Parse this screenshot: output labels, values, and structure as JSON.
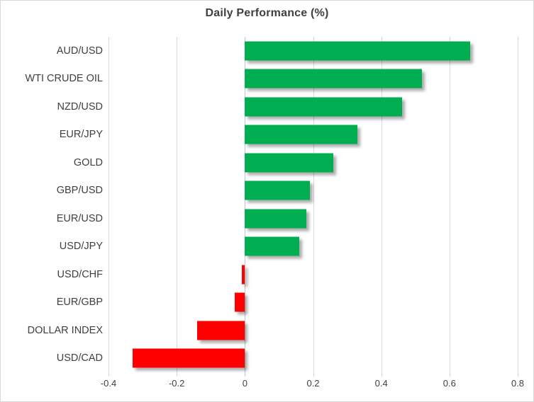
{
  "chart_data": {
    "type": "bar",
    "orientation": "horizontal",
    "title": "Daily Performance (%)",
    "categories": [
      "AUD/USD",
      "WTI CRUDE OIL",
      "NZD/USD",
      "EUR/JPY",
      "GOLD",
      "GBP/USD",
      "EUR/USD",
      "USD/JPY",
      "USD/CHF",
      "EUR/GBP",
      "DOLLAR INDEX",
      "USD/CAD"
    ],
    "values": [
      0.66,
      0.52,
      0.46,
      0.33,
      0.26,
      0.19,
      0.18,
      0.16,
      -0.01,
      -0.03,
      -0.14,
      -0.33
    ],
    "xlim": [
      -0.4,
      0.8
    ],
    "xticks": [
      -0.4,
      -0.2,
      0,
      0.2,
      0.4,
      0.6,
      0.8
    ],
    "xtick_labels": [
      "-0.4",
      "-0.2",
      "0",
      "0.2",
      "0.4",
      "0.6",
      "0.8"
    ],
    "xlabel": "",
    "ylabel": "",
    "grid": "vertical",
    "legend": "none",
    "positive_color": "#00AD50",
    "negative_color": "#FF0000",
    "gridline_color": "#d9d9d9",
    "text_color": "#404040",
    "bar_shadow": true
  }
}
